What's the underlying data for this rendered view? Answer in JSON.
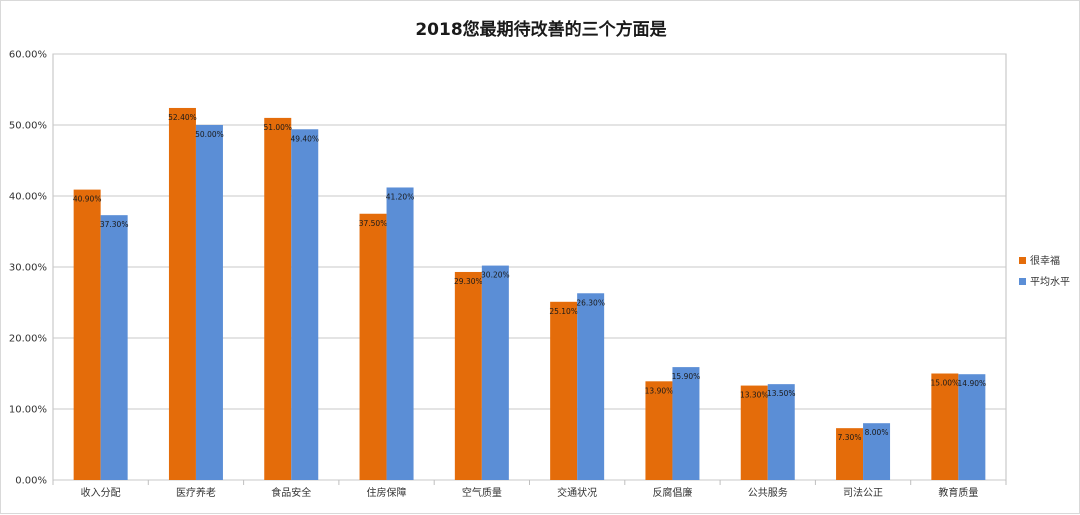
{
  "chart_data": {
    "type": "bar",
    "title": "2018您最期待改善的三个方面是",
    "categories": [
      "收入分配",
      "医疗养老",
      "食品安全",
      "住房保障",
      "空气质量",
      "交通状况",
      "反腐倡廉",
      "公共服务",
      "司法公正",
      "教育质量"
    ],
    "series": [
      {
        "name": "很幸福",
        "color": "#e46c0a",
        "values": [
          40.9,
          52.4,
          51.0,
          37.5,
          29.3,
          25.1,
          13.9,
          13.3,
          7.3,
          15.0
        ],
        "labels": [
          "40.90%",
          "52.40%",
          "51.00%",
          "37.50%",
          "29.30%",
          "25.10%",
          "13.90%",
          "13.30%",
          "7.30%",
          "15.00%"
        ]
      },
      {
        "name": "平均水平",
        "color": "#5b8ed6",
        "values": [
          37.3,
          50.0,
          49.4,
          41.2,
          30.2,
          26.3,
          15.9,
          13.5,
          8.0,
          14.9
        ],
        "labels": [
          "37.30%",
          "50.00%",
          "49.40%",
          "41.20%",
          "30.20%",
          "26.30%",
          "15.90%",
          "13.50%",
          "8.00%",
          "14.90%"
        ]
      }
    ],
    "ylim": [
      0,
      60
    ],
    "yticks": [
      0,
      10,
      20,
      30,
      40,
      50,
      60
    ],
    "ytick_labels": [
      "0.00%",
      "10.00%",
      "20.00%",
      "30.00%",
      "40.00%",
      "50.00%",
      "60.00%"
    ],
    "grid": true,
    "legend": "right"
  }
}
